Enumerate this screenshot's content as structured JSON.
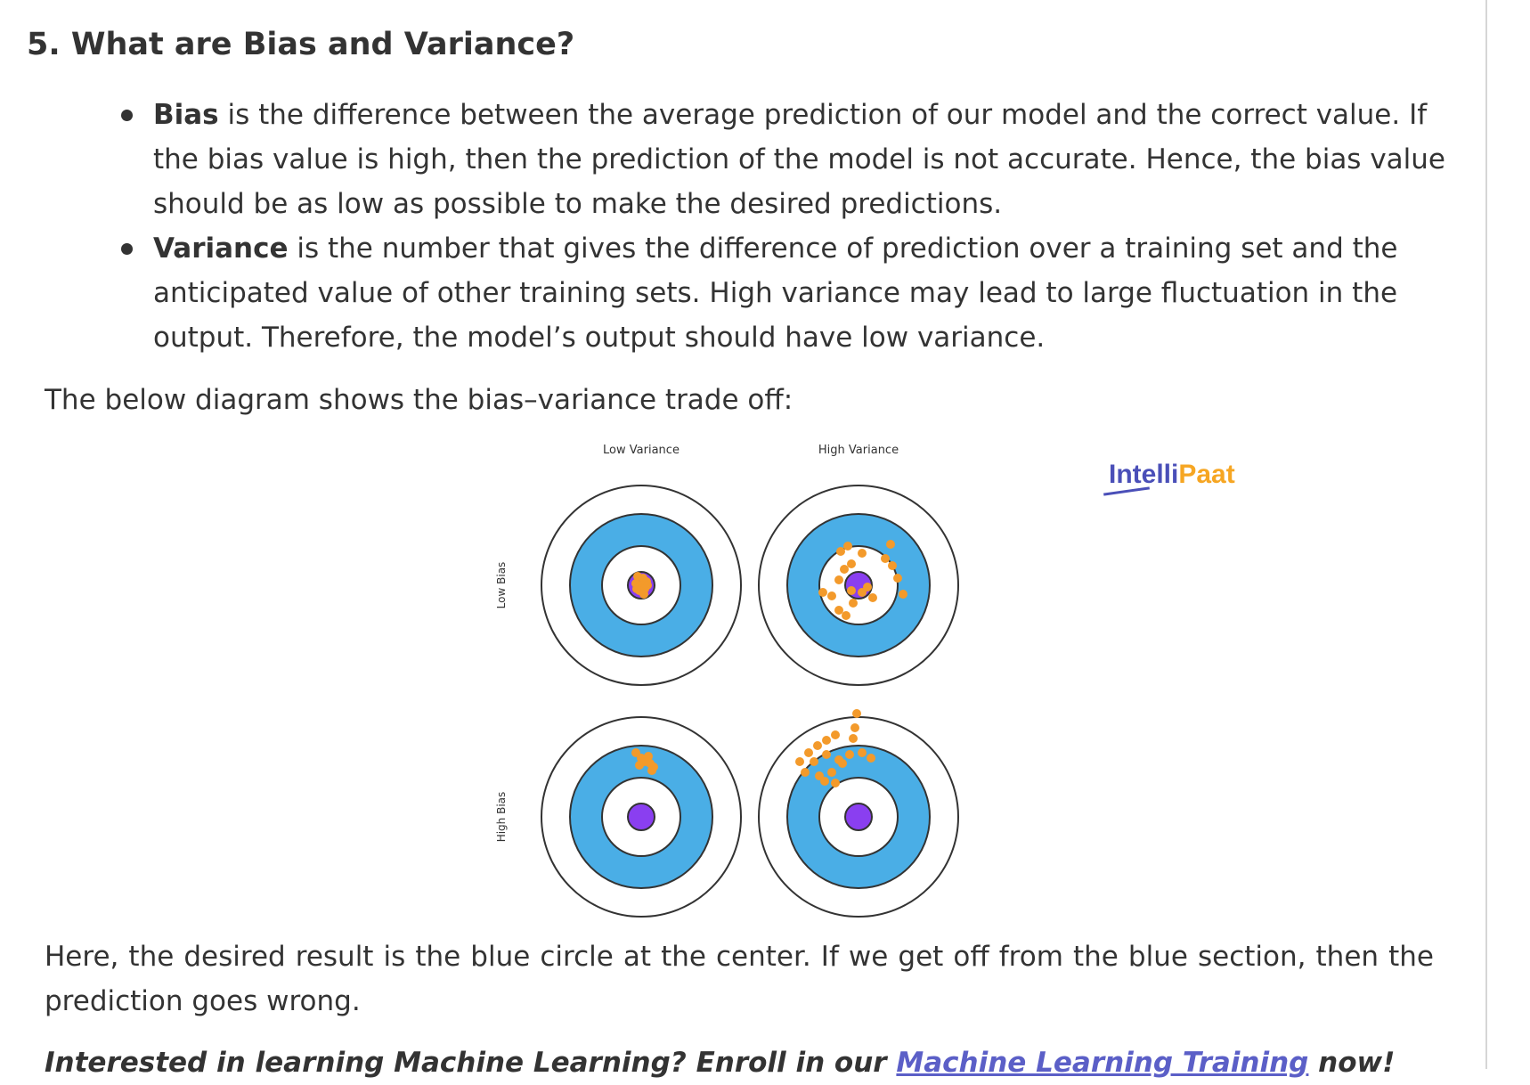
{
  "heading": "5. What are Bias and Variance?",
  "bullets": [
    {
      "term": "Bias",
      "text": " is the difference between the average prediction of our model and the correct value. If the bias value is high, then the prediction of the model is not accurate. Hence, the bias value should be as low as possible to make the desired predictions."
    },
    {
      "term": "Variance",
      "text": " is the number that gives the difference of prediction over a training set and the anticipated value of other training sets. High variance may lead to large fluctuation in the output. Therefore, the model’s output should have low variance."
    }
  ],
  "intro": "The below diagram shows the bias–variance trade off:",
  "diagram": {
    "col_labels": [
      "Low Variance",
      "High Variance"
    ],
    "row_labels": [
      "Low Bias",
      "High Bias"
    ],
    "colors": {
      "ring": "#4aaee6",
      "center": "#8a3ff0",
      "points": "#f39a2b",
      "outline": "#333333"
    }
  },
  "logo": {
    "part1": "ntelli",
    "part2": "Paat",
    "glyph": "I"
  },
  "result": "Here, the desired result is the blue circle at the center. If we get off from the blue section, then the prediction goes wrong.",
  "cta": {
    "prefix": "Interested in learning Machine Learning? Enroll in our ",
    "link": "Machine Learning Training",
    "suffix": " now!"
  }
}
